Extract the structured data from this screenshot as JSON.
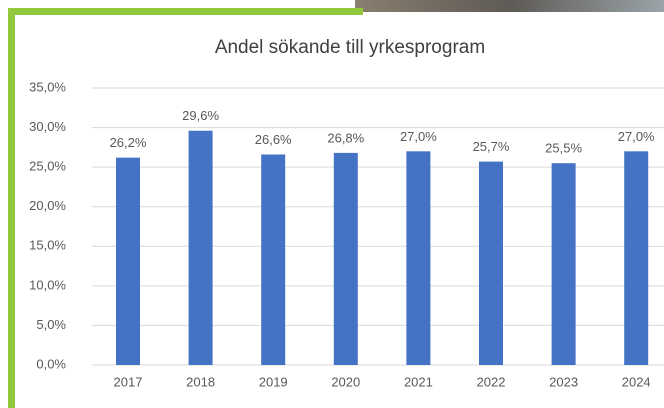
{
  "chart_data": {
    "type": "bar",
    "title": "Andel sökande till yrkesprogram",
    "categories": [
      "2017",
      "2018",
      "2019",
      "2020",
      "2021",
      "2022",
      "2023",
      "2024"
    ],
    "values": [
      26.2,
      29.6,
      26.6,
      26.8,
      27.0,
      25.7,
      25.5,
      27.0
    ],
    "value_labels": [
      "26,2%",
      "29,6%",
      "26,6%",
      "26,8%",
      "27,0%",
      "25,7%",
      "25,5%",
      "27,0%"
    ],
    "color": "#4472c4",
    "ylim": [
      0,
      35
    ],
    "yticks": [
      {
        "value": 0,
        "label": "0,0%"
      },
      {
        "value": 5,
        "label": "5,0%"
      },
      {
        "value": 10,
        "label": "10,0%"
      },
      {
        "value": 15,
        "label": "15,0%"
      },
      {
        "value": 20,
        "label": "20,0%"
      },
      {
        "value": 25,
        "label": "25,0%"
      },
      {
        "value": 30,
        "label": "30,0%"
      },
      {
        "value": 35,
        "label": "35,0%"
      }
    ],
    "grid": true
  }
}
